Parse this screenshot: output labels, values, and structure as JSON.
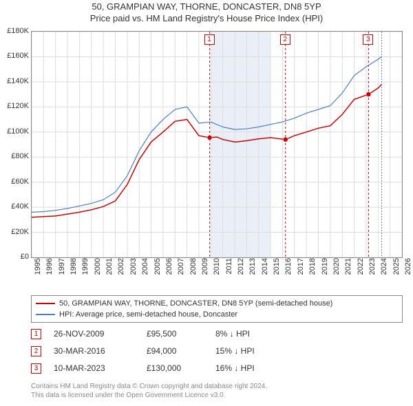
{
  "title": {
    "line1": "50, GRAMPIAN WAY, THORNE, DONCASTER, DN8 5YP",
    "line2": "Price paid vs. HM Land Registry's House Price Index (HPI)",
    "fontsize": 13,
    "color": "#333333"
  },
  "chart": {
    "type": "line",
    "background_color": "#ffffff",
    "plot_border_color": "#888888",
    "grid_color": "#dddddd",
    "band_color": "#e9eef7",
    "band_years": [
      2010,
      2011,
      2012,
      2013,
      2014
    ],
    "xlim": [
      1995,
      2026
    ],
    "ylim": [
      0,
      180000
    ],
    "ytick_step": 20000,
    "y_tick_labels": [
      "£0",
      "£20K",
      "£40K",
      "£60K",
      "£80K",
      "£100K",
      "£120K",
      "£140K",
      "£160K",
      "£180K"
    ],
    "x_tick_labels": [
      "1995",
      "1996",
      "1997",
      "1998",
      "1999",
      "2000",
      "2001",
      "2002",
      "2003",
      "2004",
      "2005",
      "2006",
      "2007",
      "2008",
      "2009",
      "2010",
      "2011",
      "2012",
      "2013",
      "2014",
      "2015",
      "2016",
      "2017",
      "2018",
      "2019",
      "2020",
      "2021",
      "2022",
      "2023",
      "2024",
      "2025",
      "2026"
    ],
    "series": [
      {
        "name": "property",
        "label": "50, GRAMPIAN WAY, THORNE, DONCASTER, DN8 5YP (semi-detached house)",
        "color": "#cc0000",
        "line_width": 1.5,
        "data": [
          [
            1995,
            32000
          ],
          [
            1996,
            32500
          ],
          [
            1997,
            33000
          ],
          [
            1998,
            34500
          ],
          [
            1999,
            36000
          ],
          [
            2000,
            38000
          ],
          [
            2001,
            40500
          ],
          [
            2002,
            45000
          ],
          [
            2003,
            58000
          ],
          [
            2004,
            78000
          ],
          [
            2005,
            92000
          ],
          [
            2006,
            100000
          ],
          [
            2007,
            108500
          ],
          [
            2008,
            110000
          ],
          [
            2009,
            97000
          ],
          [
            2009.9,
            95500
          ],
          [
            2010.5,
            96000
          ],
          [
            2011,
            94000
          ],
          [
            2012,
            92000
          ],
          [
            2013,
            93000
          ],
          [
            2014,
            94500
          ],
          [
            2015,
            95500
          ],
          [
            2016.25,
            94000
          ],
          [
            2017,
            97000
          ],
          [
            2018,
            100000
          ],
          [
            2019,
            103000
          ],
          [
            2020,
            105000
          ],
          [
            2021,
            114000
          ],
          [
            2022,
            126000
          ],
          [
            2023.2,
            130000
          ],
          [
            2024,
            135000
          ],
          [
            2024.3,
            138000
          ]
        ]
      },
      {
        "name": "hpi",
        "label": "HPI: Average price, semi-detached house, Doncaster",
        "color": "#4a7ecb",
        "line_width": 1.2,
        "data": [
          [
            1995,
            36000
          ],
          [
            1996,
            36500
          ],
          [
            1997,
            37500
          ],
          [
            1998,
            39000
          ],
          [
            1999,
            41000
          ],
          [
            2000,
            43000
          ],
          [
            2001,
            46000
          ],
          [
            2002,
            52000
          ],
          [
            2003,
            65000
          ],
          [
            2004,
            85000
          ],
          [
            2005,
            100000
          ],
          [
            2006,
            110000
          ],
          [
            2007,
            118000
          ],
          [
            2008,
            120000
          ],
          [
            2009,
            107000
          ],
          [
            2010,
            108000
          ],
          [
            2011,
            104000
          ],
          [
            2012,
            102000
          ],
          [
            2013,
            102500
          ],
          [
            2014,
            104000
          ],
          [
            2015,
            106000
          ],
          [
            2016,
            108000
          ],
          [
            2017,
            111000
          ],
          [
            2018,
            115000
          ],
          [
            2019,
            118000
          ],
          [
            2020,
            121000
          ],
          [
            2021,
            131000
          ],
          [
            2022,
            145000
          ],
          [
            2023,
            152000
          ],
          [
            2024,
            158000
          ],
          [
            2024.3,
            160000
          ]
        ]
      }
    ],
    "markers": [
      {
        "year": 2009.9,
        "value": 95500,
        "color": "#cc0000"
      },
      {
        "year": 2016.25,
        "value": 94000,
        "color": "#cc0000"
      },
      {
        "year": 2023.2,
        "value": 130000,
        "color": "#cc0000"
      }
    ],
    "event_lines": [
      {
        "year": 2009.9,
        "color": "#cc0000",
        "dash": "3,3"
      },
      {
        "year": 2016.25,
        "color": "#cc0000",
        "dash": "3,3"
      },
      {
        "year": 2023.2,
        "color": "#cc0000",
        "dash": "3,3"
      },
      {
        "year": 2024.3,
        "color": "#6a85c8",
        "dash": "2,2"
      }
    ],
    "plot_badges": [
      {
        "n": "1",
        "year": 2009.9
      },
      {
        "n": "2",
        "year": 2016.25
      },
      {
        "n": "3",
        "year": 2023.2
      }
    ],
    "axis_label_fontsize": 11
  },
  "legend": {
    "items": [
      {
        "color": "#cc0000",
        "label": "50, GRAMPIAN WAY, THORNE, DONCASTER, DN8 5YP (semi-detached house)"
      },
      {
        "color": "#4a7ecb",
        "label": "HPI: Average price, semi-detached house, Doncaster"
      }
    ],
    "fontsize": 11
  },
  "events": [
    {
      "n": "1",
      "date": "26-NOV-2009",
      "price": "£95,500",
      "delta": "8% ↓ HPI"
    },
    {
      "n": "2",
      "date": "30-MAR-2016",
      "price": "£94,000",
      "delta": "15% ↓ HPI"
    },
    {
      "n": "3",
      "date": "10-MAR-2023",
      "price": "£130,000",
      "delta": "16% ↓ HPI"
    }
  ],
  "footer": {
    "line1": "Contains HM Land Registry data © Crown copyright and database right 2024.",
    "line2": "This data is licensed under the Open Government Licence v3.0.",
    "color": "#888888",
    "fontsize": 10
  }
}
